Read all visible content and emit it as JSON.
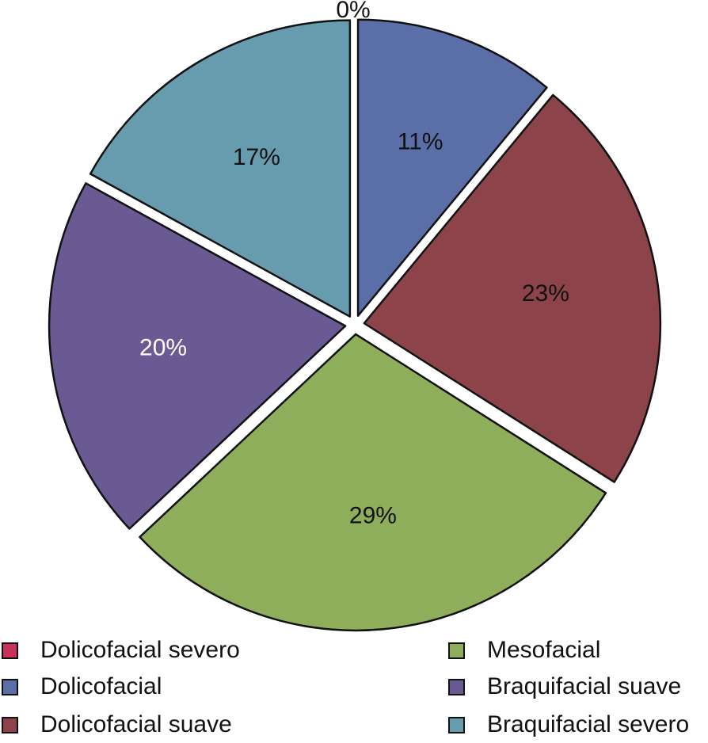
{
  "chart_data": {
    "type": "pie",
    "title": "",
    "slices": [
      {
        "label": "Dolicofacial severo",
        "value": 0,
        "display": "0%",
        "color": "#c8325a",
        "label_color": "#111111"
      },
      {
        "label": "Dolicofacial",
        "value": 11,
        "display": "11%",
        "color": "#5a6ea8",
        "label_color": "#111111"
      },
      {
        "label": "Dolicofacial suave",
        "value": 23,
        "display": "23%",
        "color": "#8c444a",
        "label_color": "#111111"
      },
      {
        "label": "Mesofacial",
        "value": 29,
        "display": "29%",
        "color": "#8fae5b",
        "label_color": "#111111"
      },
      {
        "label": "Braquifacial suave",
        "value": 20,
        "display": "20%",
        "color": "#6a5a94",
        "label_color": "#ffffff"
      },
      {
        "label": "Braquifacial severo",
        "value": 17,
        "display": "17%",
        "color": "#679caf",
        "label_color": "#111111"
      }
    ],
    "legend_position": "bottom",
    "slice_order": "clockwise from top"
  }
}
